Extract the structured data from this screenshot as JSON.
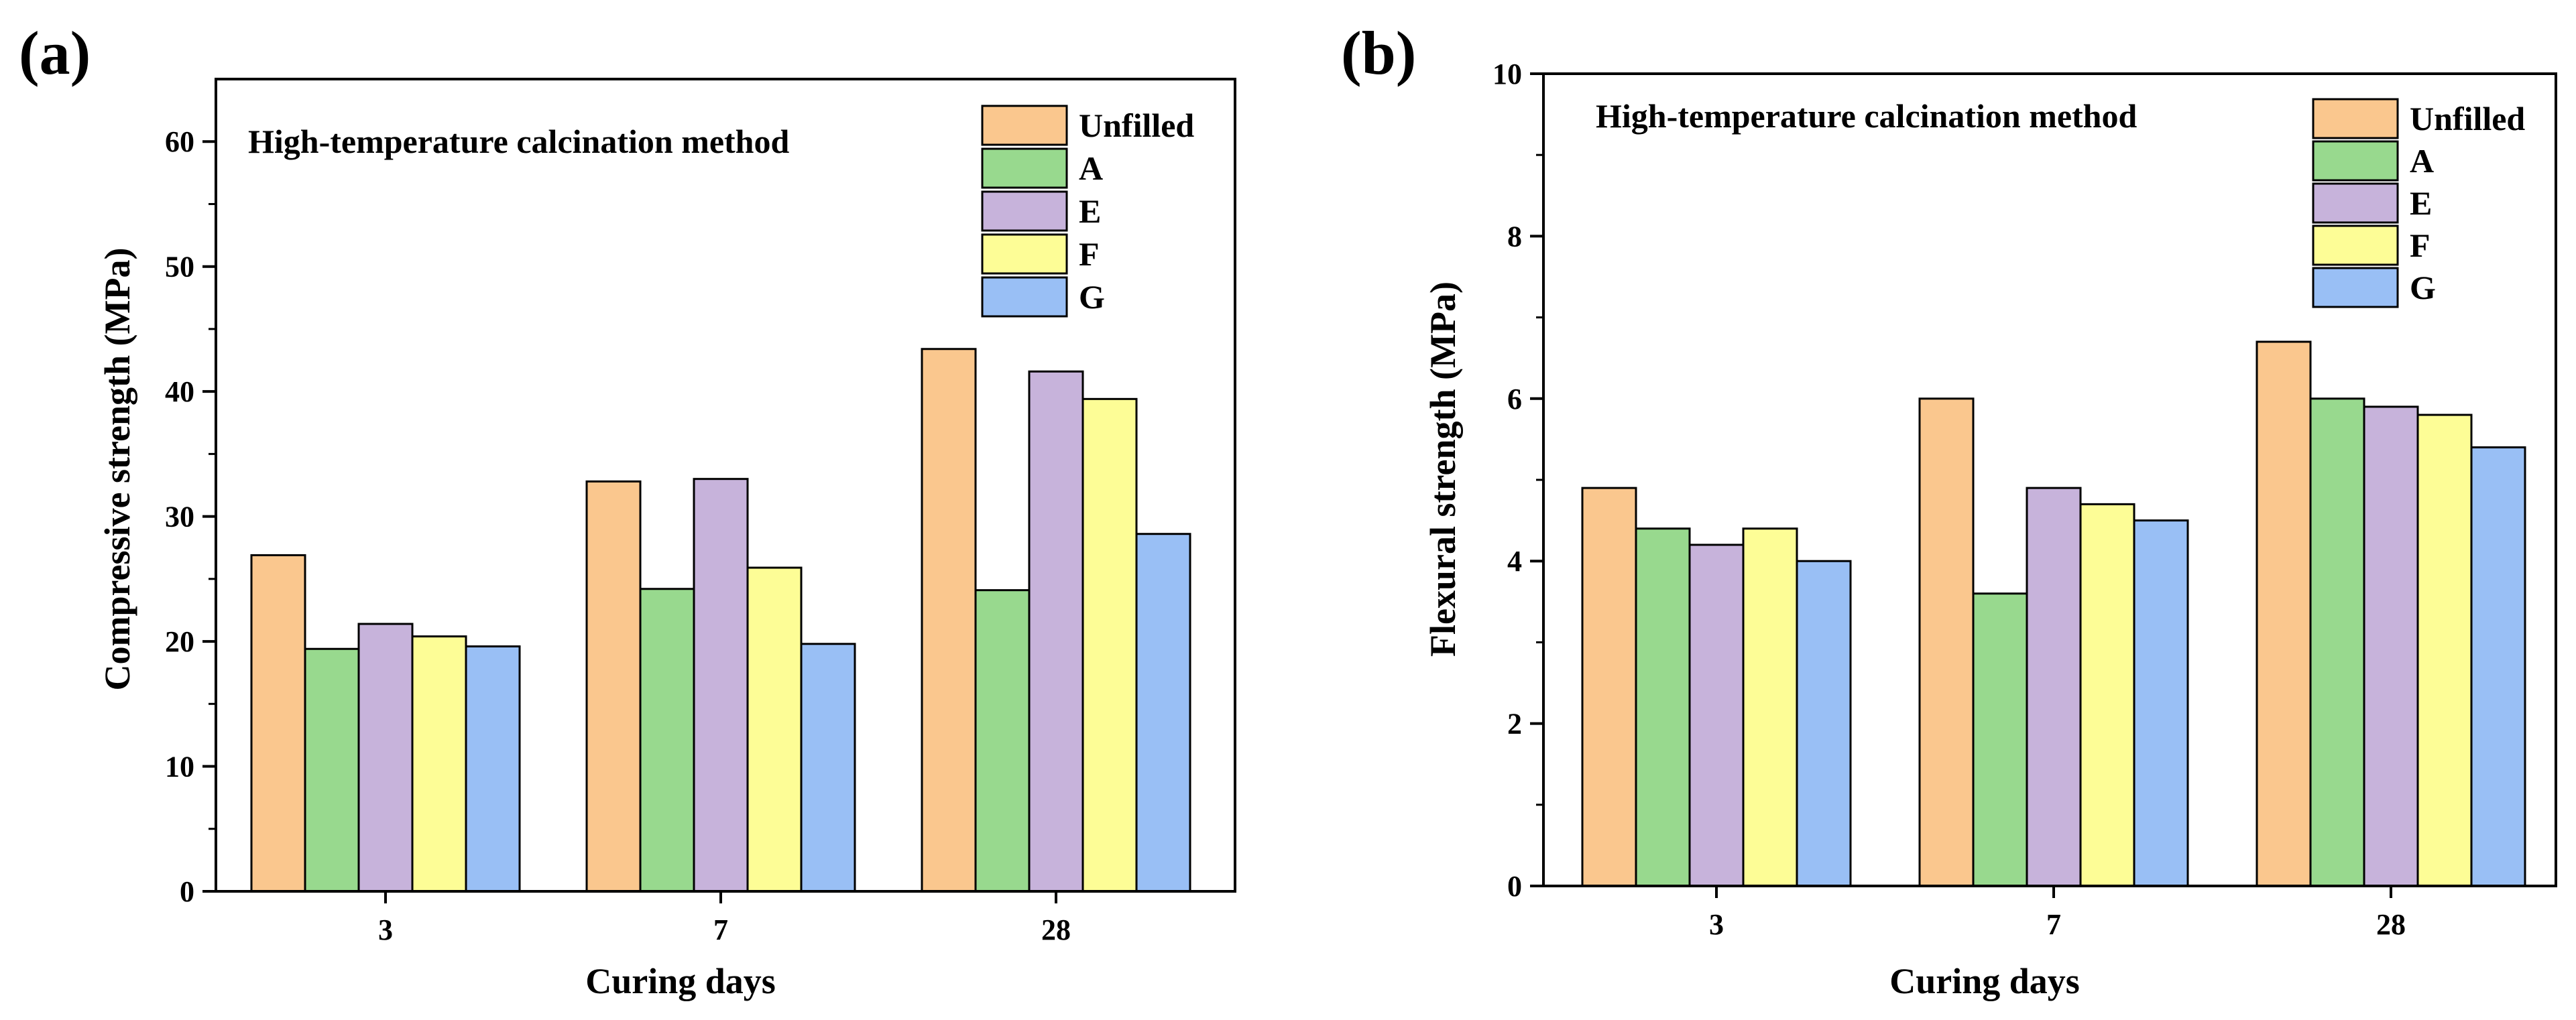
{
  "colors": {
    "Unfilled": "#FAC78E",
    "A": "#98D98E",
    "E": "#C7B3DB",
    "F": "#FDFD96",
    "G": "#99BFF5"
  },
  "chart_data": [
    {
      "type": "bar",
      "panel_label": "(a)",
      "annotation": "High-temperature calcination method",
      "xlabel": "Curing days",
      "ylabel": "Compressive strength (MPa)",
      "categories": [
        "3",
        "7",
        "28"
      ],
      "ylim": [
        0,
        65
      ],
      "yticks": [
        0,
        10,
        20,
        30,
        40,
        50,
        60
      ],
      "legend_position": "top-right",
      "series": [
        {
          "name": "Unfilled",
          "values": [
            26.9,
            32.8,
            43.4
          ]
        },
        {
          "name": "A",
          "values": [
            19.4,
            24.2,
            24.1
          ]
        },
        {
          "name": "E",
          "values": [
            21.4,
            33.0,
            41.6
          ]
        },
        {
          "name": "F",
          "values": [
            20.4,
            25.9,
            39.4
          ]
        },
        {
          "name": "G",
          "values": [
            19.6,
            19.8,
            28.6
          ]
        }
      ]
    },
    {
      "type": "bar",
      "panel_label": "(b)",
      "annotation": "High-temperature calcination method",
      "xlabel": "Curing days",
      "ylabel": "Flexural strength (MPa)",
      "categories": [
        "3",
        "7",
        "28"
      ],
      "ylim": [
        0,
        10
      ],
      "yticks": [
        0,
        2,
        4,
        6,
        8,
        10
      ],
      "legend_position": "top-right",
      "series": [
        {
          "name": "Unfilled",
          "values": [
            4.9,
            6.0,
            6.7
          ]
        },
        {
          "name": "A",
          "values": [
            4.4,
            3.6,
            6.0
          ]
        },
        {
          "name": "E",
          "values": [
            4.2,
            4.9,
            5.9
          ]
        },
        {
          "name": "F",
          "values": [
            4.4,
            4.7,
            5.8
          ]
        },
        {
          "name": "G",
          "values": [
            4.0,
            4.5,
            5.4
          ]
        }
      ]
    }
  ]
}
